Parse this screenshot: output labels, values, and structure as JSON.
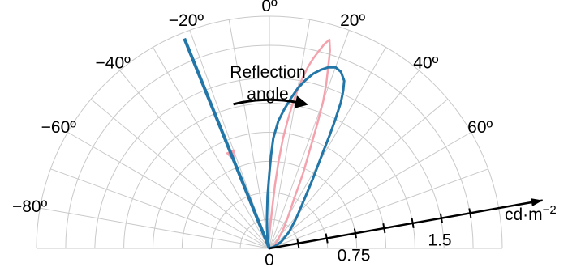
{
  "colors": {
    "grid": "#c9c9c9",
    "axis": "#000000",
    "pink": "#f4a3ae",
    "blue": "#2376a8",
    "text": "#000000"
  },
  "chart_data": {
    "type": "polar",
    "angle_labels": [
      {
        "angle": -80,
        "text": "−80º"
      },
      {
        "angle": -60,
        "text": "−60º"
      },
      {
        "angle": -40,
        "text": "−40º"
      },
      {
        "angle": -20,
        "text": "−20º"
      },
      {
        "angle": 0,
        "text": "0º"
      },
      {
        "angle": 20,
        "text": "20º"
      },
      {
        "angle": 40,
        "text": "40º"
      },
      {
        "angle": 60,
        "text": "60º"
      }
    ],
    "radial_axis": {
      "angle": 80,
      "range": [
        0,
        2.0
      ],
      "ticks": [
        0.25,
        0.5,
        0.75,
        1.0,
        1.25,
        1.5,
        1.75
      ],
      "tick_labels": [
        {
          "value": 0.75,
          "text": "0.75"
        },
        {
          "value": 1.5,
          "text": "1.5"
        }
      ],
      "unit": "cd·m",
      "unit_exponent": "−2",
      "origin_label": "0"
    },
    "grid": {
      "angle_step": 10,
      "angle_range": [
        -90,
        90
      ],
      "rings": [
        0.25,
        0.5,
        0.75,
        1.0,
        1.25,
        1.5,
        1.75,
        2.0
      ]
    },
    "annotation": {
      "text_line1": "Reflection",
      "text_line2": "angle",
      "arrow_from_angle": -14,
      "arrow_to_angle": 12
    },
    "series": [
      {
        "color": "pink",
        "incident_line": {
          "angle": -22,
          "r": 1.9,
          "arrow": true
        },
        "points": [
          [
            -20,
            0.05
          ],
          [
            -13,
            0.06
          ],
          [
            -6,
            0.06
          ],
          [
            -2,
            0.08
          ],
          [
            0,
            0.12
          ],
          [
            2,
            0.18
          ],
          [
            4,
            0.35
          ],
          [
            5,
            0.55
          ],
          [
            6,
            0.75
          ],
          [
            7,
            0.95
          ],
          [
            8,
            1.1
          ],
          [
            9,
            1.25
          ],
          [
            10,
            1.38
          ],
          [
            11,
            1.5
          ],
          [
            12,
            1.6
          ],
          [
            13,
            1.68
          ],
          [
            14,
            1.75
          ],
          [
            15,
            1.82
          ],
          [
            16,
            1.87
          ],
          [
            17,
            1.78
          ],
          [
            18,
            1.63
          ],
          [
            19,
            1.5
          ],
          [
            20,
            1.35
          ],
          [
            21,
            1.15
          ],
          [
            22,
            0.95
          ],
          [
            23,
            0.82
          ],
          [
            24,
            0.72
          ],
          [
            25,
            0.6
          ],
          [
            26,
            0.5
          ],
          [
            28,
            0.4
          ],
          [
            31,
            0.3
          ],
          [
            36,
            0.2
          ],
          [
            45,
            0.1
          ],
          [
            60,
            0.05
          ],
          [
            70,
            0.02
          ]
        ]
      },
      {
        "color": "blue",
        "incident_line": {
          "angle": -22,
          "r": 1.95,
          "arrow": false
        },
        "points": [
          [
            -10,
            0.1
          ],
          [
            -5,
            0.25
          ],
          [
            -2,
            0.45
          ],
          [
            0,
            0.65
          ],
          [
            1,
            0.8
          ],
          [
            2,
            0.95
          ],
          [
            4,
            1.1
          ],
          [
            6,
            1.2
          ],
          [
            8,
            1.3
          ],
          [
            10,
            1.4
          ],
          [
            12,
            1.48
          ],
          [
            14,
            1.55
          ],
          [
            16,
            1.6
          ],
          [
            18,
            1.64
          ],
          [
            20,
            1.66
          ],
          [
            22,
            1.64
          ],
          [
            24,
            1.58
          ],
          [
            25,
            1.5
          ],
          [
            26,
            1.4
          ],
          [
            27,
            1.25
          ],
          [
            28,
            1.1
          ],
          [
            29,
            0.95
          ],
          [
            30,
            0.85
          ],
          [
            32,
            0.7
          ],
          [
            34,
            0.58
          ],
          [
            37,
            0.46
          ],
          [
            42,
            0.34
          ],
          [
            50,
            0.22
          ],
          [
            60,
            0.12
          ],
          [
            70,
            0.05
          ]
        ]
      }
    ]
  }
}
